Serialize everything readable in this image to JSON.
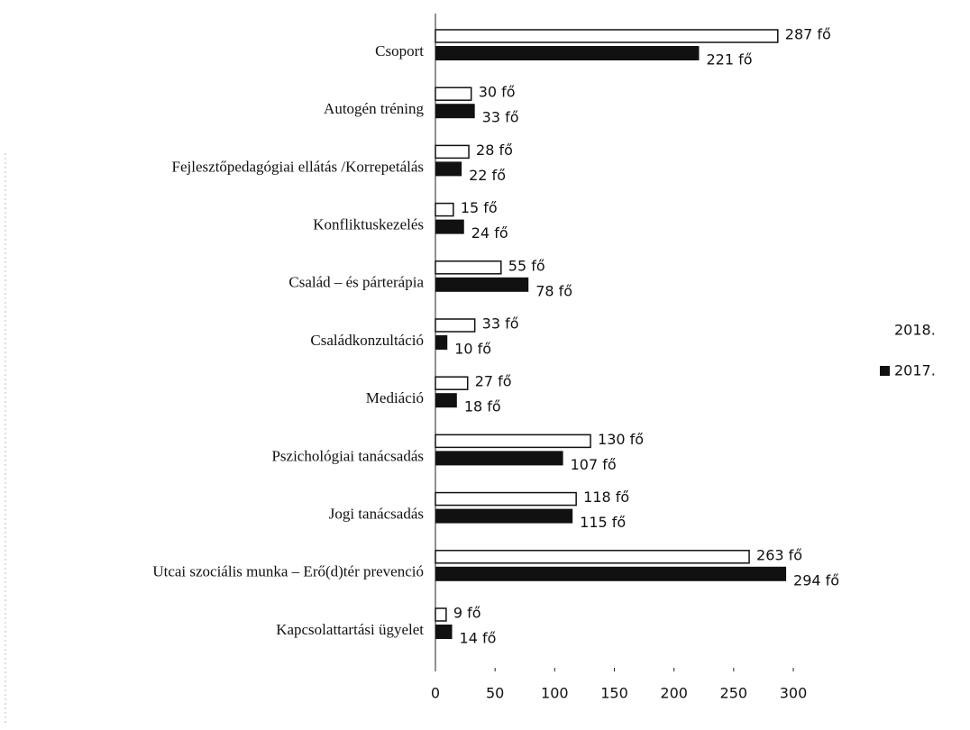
{
  "chart_data": {
    "type": "barh",
    "categories": [
      "Csoport",
      "Autogén tréning",
      "Fejlesztőpedagógiai ellátás /Korrepetálás",
      "Konfliktuskezelés",
      "Család – és párterápia",
      "Családkonzultáció",
      "Mediáció",
      "Pszichológiai tanácsadás",
      "Jogi tanácsadás",
      "Utcai szociális munka – Erő(d)tér prevenció",
      "Kapcsolattartási ügyelet"
    ],
    "series": [
      {
        "name": "2018.",
        "color": "#ffffff",
        "values": [
          287,
          30,
          28,
          15,
          55,
          33,
          27,
          130,
          118,
          263,
          9
        ],
        "value_labels": [
          "287 fő",
          "30 fő",
          "28 fő",
          "15 fő",
          "55 fő",
          "33 fő",
          "27 fő",
          "130 fő",
          "118 fő",
          "263 fő",
          "9 fő"
        ]
      },
      {
        "name": "2017.",
        "color": "#111111",
        "values": [
          221,
          33,
          22,
          24,
          78,
          10,
          18,
          107,
          115,
          294,
          14
        ],
        "value_labels": [
          "221 fő",
          "33 fő",
          "22 fő",
          "24 fő",
          "78 fő",
          "10 fő",
          "18 fő",
          "107 fő",
          "115 fő",
          "294 fő",
          "14 fő"
        ]
      }
    ],
    "xlim": [
      0,
      300
    ],
    "xticks": [
      0,
      50,
      100,
      150,
      200,
      250,
      300
    ],
    "legend": "right"
  }
}
